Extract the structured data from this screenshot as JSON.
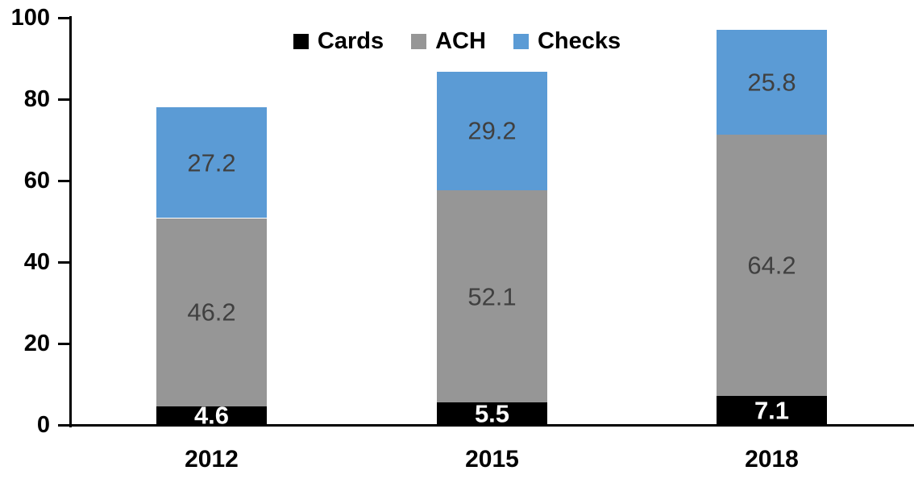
{
  "chart_data": {
    "type": "bar",
    "stacked": true,
    "categories": [
      "2012",
      "2015",
      "2018"
    ],
    "series": [
      {
        "name": "Cards",
        "color": "#000000",
        "label_color": "#ffffff",
        "values": [
          4.6,
          5.5,
          7.1
        ]
      },
      {
        "name": "ACH",
        "color": "#969696",
        "label_color": "#404040",
        "values": [
          46.2,
          52.1,
          64.2
        ]
      },
      {
        "name": "Checks",
        "color": "#5B9BD5",
        "label_color": "#404040",
        "values": [
          27.2,
          29.2,
          25.8
        ]
      }
    ],
    "ylim": [
      0,
      100
    ],
    "yticks": [
      0,
      20,
      40,
      60,
      80,
      100
    ],
    "legend_entries": [
      "Cards",
      "ACH",
      "Checks"
    ],
    "legend_position": "top-center",
    "grid": false,
    "axis_color": "#000000",
    "background_color": "#ffffff",
    "data_labels_visible": true
  }
}
